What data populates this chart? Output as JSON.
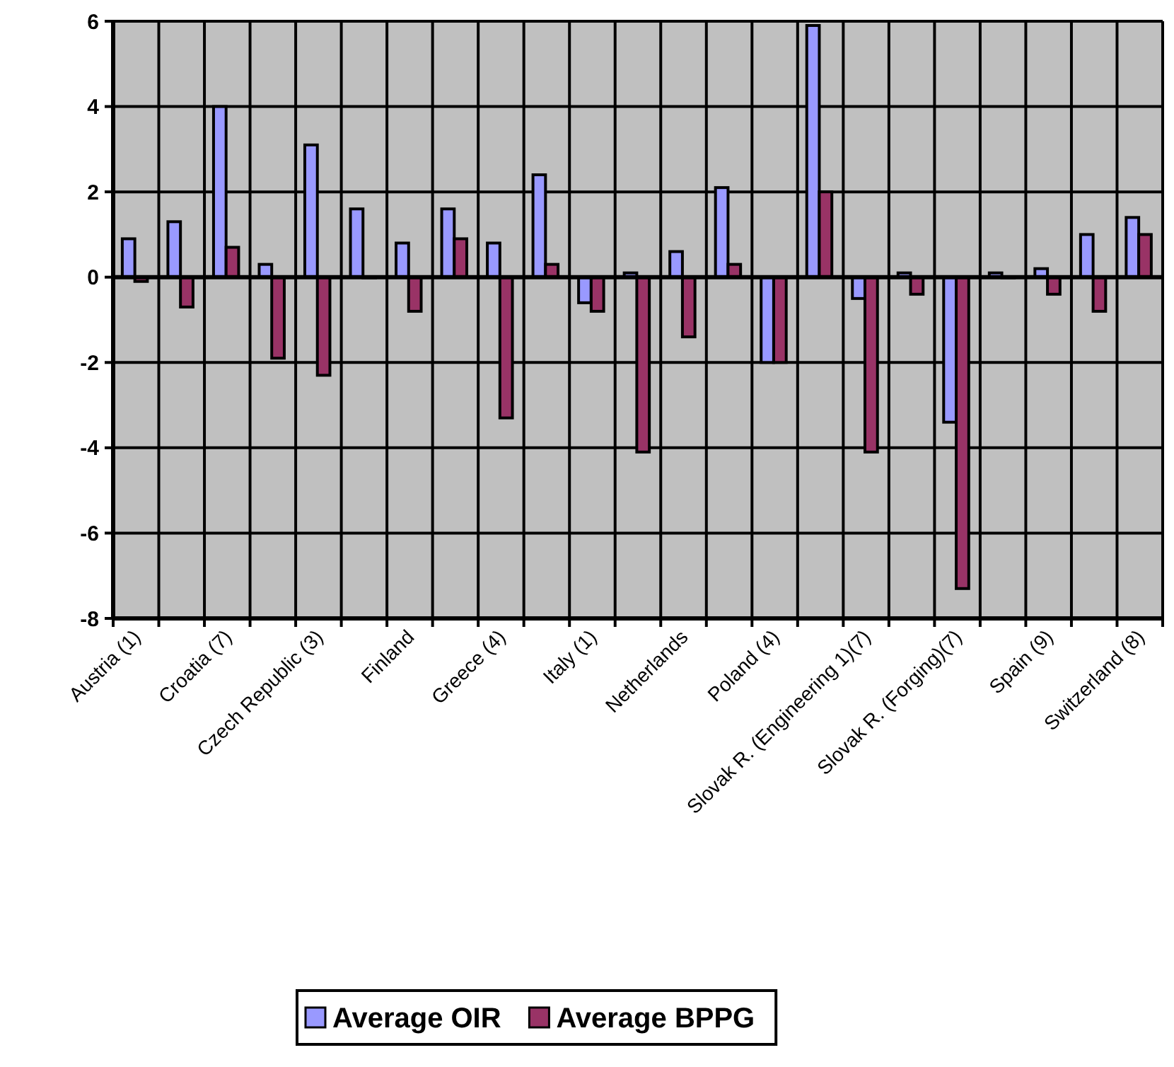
{
  "chart_data": {
    "type": "bar",
    "categories": [
      "Austria (1)",
      null,
      "Croatia (7)",
      null,
      "Czech Republic (3)",
      null,
      "Finland",
      null,
      "Greece (4)",
      null,
      "Italy (1)",
      null,
      "Netherlands",
      null,
      "Poland (4)",
      null,
      "Slovak R. (Engineering 1)(7)",
      null,
      "Slovak R. (Forging)(7)",
      null,
      "Spain (9)",
      null,
      "Switzerland (8)"
    ],
    "series": [
      {
        "name": "Average OIR",
        "color": "#9999ff",
        "values": [
          0.9,
          1.3,
          4.0,
          0.3,
          3.1,
          1.6,
          0.8,
          1.6,
          0.8,
          2.4,
          -0.6,
          0.1,
          0.6,
          2.1,
          -2,
          5.9,
          -0.5,
          0.1,
          -3.4,
          0.1,
          0.2,
          1.0,
          1.4
        ]
      },
      {
        "name": "Average BPPG",
        "color": "#993366",
        "values": [
          -0.1,
          -0.7,
          0.7,
          -1.9,
          -2.3,
          0,
          -0.8,
          0.9,
          -3.3,
          0.3,
          -0.8,
          -4.1,
          -1.4,
          0.3,
          -2,
          2.0,
          -4.1,
          -0.4,
          -7.3,
          0,
          -0.4,
          -0.8,
          1.0
        ]
      }
    ],
    "ylim": [
      -8,
      6
    ],
    "yticks": [
      -8,
      -6,
      -4,
      -2,
      0,
      2,
      4,
      6
    ],
    "grid": true,
    "legend": "bottom"
  }
}
